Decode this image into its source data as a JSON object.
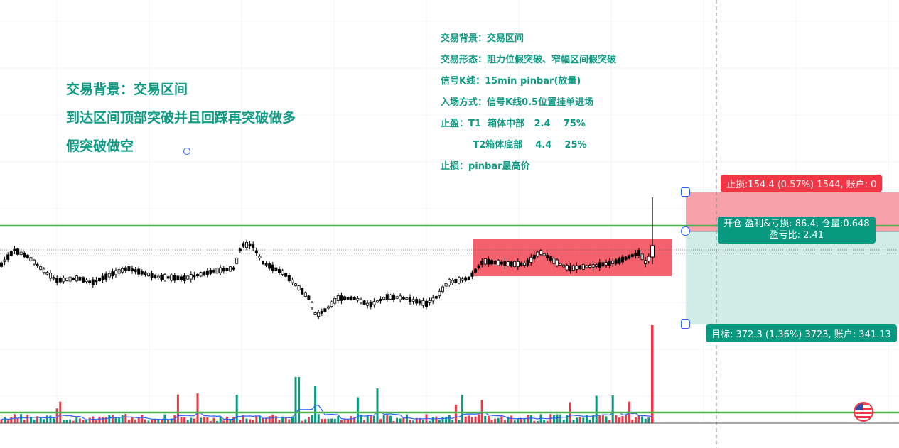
{
  "left_notes": [
    "交易背景：交易区间",
    "到达区间顶部突破并且回踩再突破做多",
    "假突破做空"
  ],
  "right_notes": [
    "交易背景：交易区间",
    "交易形态：阻力位假突破、窄幅区间假突破",
    "信号K线：15min pinbar(放量)",
    "入场方式：信号K线0.5位置挂单进场",
    "止盈：T1  箱体中部   2.4    75%",
    "          T2箱体底部    4.4    25%",
    "止损：pinbar最高价"
  ],
  "position_tool": {
    "stop_label": "止损:154.4 (0.57%) 1544, 账户: 0",
    "entry_label_line1": "开仓 盈利&亏损: 86.4, 仓量:0.648",
    "entry_label_line2": "盈亏比: 2.41",
    "target_label": "目标: 372.3 (1.36%) 3723, 账户: 341.13"
  },
  "colors": {
    "bull": "#089981",
    "bear": "#f23645",
    "candle": "#000000",
    "level_line": "#4caf50",
    "range_box": "#f23645",
    "stop_zone": "#f7a1ab",
    "target_zone": "#d1ebe6",
    "volume_ma": "#2962ff",
    "notes": "#0f9a84"
  },
  "icons": {
    "handle": "square-handle-icon",
    "flag": "us-flag-icon"
  }
}
